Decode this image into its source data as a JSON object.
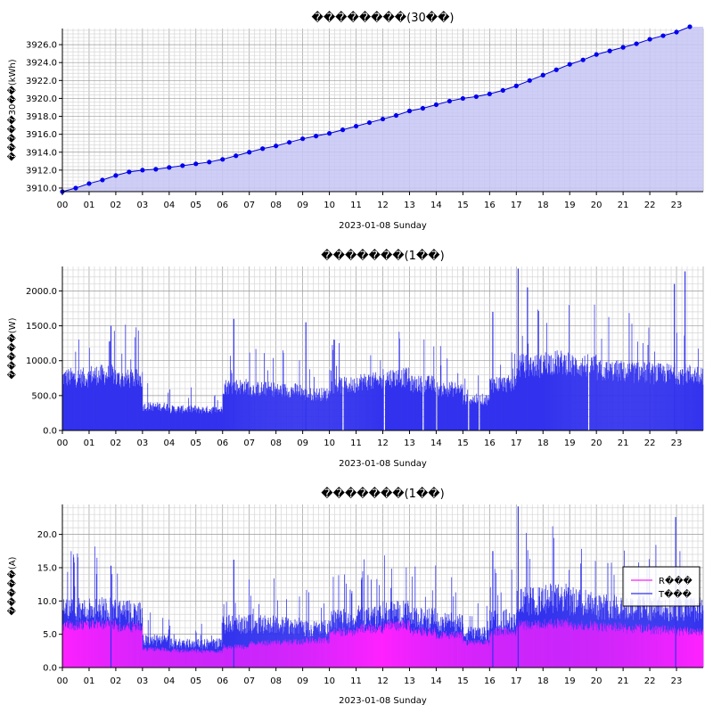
{
  "chart_data": [
    {
      "type": "area",
      "title": "��������(30��)",
      "ylabel": "�����30��(kWh)",
      "xlabel": "2023-01-08 Sunday",
      "x_ticks": [
        "00",
        "01",
        "02",
        "03",
        "04",
        "05",
        "06",
        "07",
        "08",
        "09",
        "10",
        "11",
        "12",
        "13",
        "14",
        "15",
        "16",
        "17",
        "18",
        "19",
        "20",
        "21",
        "22",
        "23"
      ],
      "y_ticks": [
        "3910.0",
        "3912.0",
        "3914.0",
        "3916.0",
        "3918.0",
        "3920.0",
        "3922.0",
        "3924.0",
        "3926.0"
      ],
      "ylim": [
        3909.6,
        3927.8
      ],
      "xlim": [
        0,
        24
      ],
      "grid": true,
      "colors": {
        "line": "#0000dd",
        "fill": "#c6c6f4",
        "marker": "#0000ee"
      },
      "series": [
        {
          "x": [
            0,
            0.5,
            1,
            1.5,
            2,
            2.5,
            3,
            3.5,
            4,
            4.5,
            5,
            5.5,
            6,
            6.5,
            7,
            7.5,
            8,
            8.5,
            9,
            9.5,
            10,
            10.5,
            11,
            11.5,
            12,
            12.5,
            13,
            13.5,
            14,
            14.5,
            15,
            15.5,
            16,
            16.5,
            17,
            17.5,
            18,
            18.5,
            19,
            19.5,
            20,
            20.5,
            21,
            21.5,
            22,
            22.5,
            23,
            23.5
          ],
          "values": [
            3909.6,
            3910.0,
            3910.5,
            3910.9,
            3911.4,
            3911.8,
            3912.0,
            3912.1,
            3912.3,
            3912.5,
            3912.7,
            3912.9,
            3913.2,
            3913.6,
            3914.0,
            3914.4,
            3914.7,
            3915.1,
            3915.5,
            3915.8,
            3916.1,
            3916.5,
            3916.9,
            3917.3,
            3917.7,
            3918.1,
            3918.6,
            3918.9,
            3919.3,
            3919.7,
            3920.0,
            3920.2,
            3920.5,
            3920.9,
            3921.4,
            3922.0,
            3922.6,
            3923.2,
            3923.8,
            3924.3,
            3924.9,
            3925.3,
            3925.7,
            3926.1,
            3926.6,
            3927.0,
            3927.4,
            3928.0
          ]
        }
      ]
    },
    {
      "type": "bar",
      "title": "�������(1��)",
      "ylabel": "�����(W)",
      "xlabel": "2023-01-08 Sunday",
      "x_ticks": [
        "00",
        "01",
        "02",
        "03",
        "04",
        "05",
        "06",
        "07",
        "08",
        "09",
        "10",
        "11",
        "12",
        "13",
        "14",
        "15",
        "16",
        "17",
        "18",
        "19",
        "20",
        "21",
        "22",
        "23"
      ],
      "y_ticks": [
        "0.0",
        "500.0",
        "1000.0",
        "1500.0",
        "2000.0"
      ],
      "ylim": [
        0,
        2350
      ],
      "xlim": [
        0,
        24
      ],
      "grid": true,
      "colors": {
        "bar": "#3333ee"
      },
      "hourly_level_W": [
        820,
        860,
        800,
        370,
        330,
        320,
        680,
        640,
        620,
        560,
        700,
        760,
        820,
        720,
        640,
        480,
        720,
        1000,
        1050,
        1000,
        920,
        900,
        880,
        870
      ],
      "peaks": [
        {
          "x": 1.8,
          "value": 1500
        },
        {
          "x": 6.4,
          "value": 1600
        },
        {
          "x": 9.1,
          "value": 1550
        },
        {
          "x": 16.1,
          "value": 1700
        },
        {
          "x": 17.05,
          "value": 2320
        },
        {
          "x": 17.4,
          "value": 2050
        },
        {
          "x": 22.9,
          "value": 2100
        },
        {
          "x": 23.3,
          "value": 2280
        }
      ]
    },
    {
      "type": "bar",
      "title": "�������(1��)",
      "ylabel": "�����(A)",
      "xlabel": "2023-01-08 Sunday",
      "x_ticks": [
        "00",
        "01",
        "02",
        "03",
        "04",
        "05",
        "06",
        "07",
        "08",
        "09",
        "10",
        "11",
        "12",
        "13",
        "14",
        "15",
        "16",
        "17",
        "18",
        "19",
        "20",
        "21",
        "22",
        "23"
      ],
      "y_ticks": [
        "0.0",
        "5.0",
        "10.0",
        "15.0",
        "20.0"
      ],
      "ylim": [
        0,
        24.5
      ],
      "xlim": [
        0,
        24
      ],
      "grid": true,
      "legend_position": "right",
      "colors": {
        "R": "#ff22ff",
        "T": "#3333ee"
      },
      "series": [
        {
          "name": "R���",
          "hourly_level_A": [
            6.5,
            6.6,
            6.2,
            2.8,
            2.6,
            2.5,
            3.2,
            3.8,
            3.9,
            4.2,
            5.5,
            6.0,
            6.5,
            5.5,
            5.0,
            3.8,
            5.5,
            6.5,
            6.8,
            6.5,
            6.2,
            6.0,
            5.8,
            5.6
          ]
        },
        {
          "name": "T���",
          "hourly_level_A": [
            9.5,
            9.8,
            9.2,
            4.5,
            4.0,
            4.0,
            7.2,
            7.3,
            7.0,
            6.5,
            8.0,
            8.6,
            9.2,
            8.2,
            7.5,
            5.6,
            8.0,
            11.0,
            11.5,
            11.0,
            10.2,
            10.0,
            9.8,
            9.7
          ]
        }
      ],
      "legend": [
        {
          "name": "R���",
          "color": "#ff22ff"
        },
        {
          "name": "T���",
          "color": "#3333ee"
        }
      ]
    }
  ]
}
